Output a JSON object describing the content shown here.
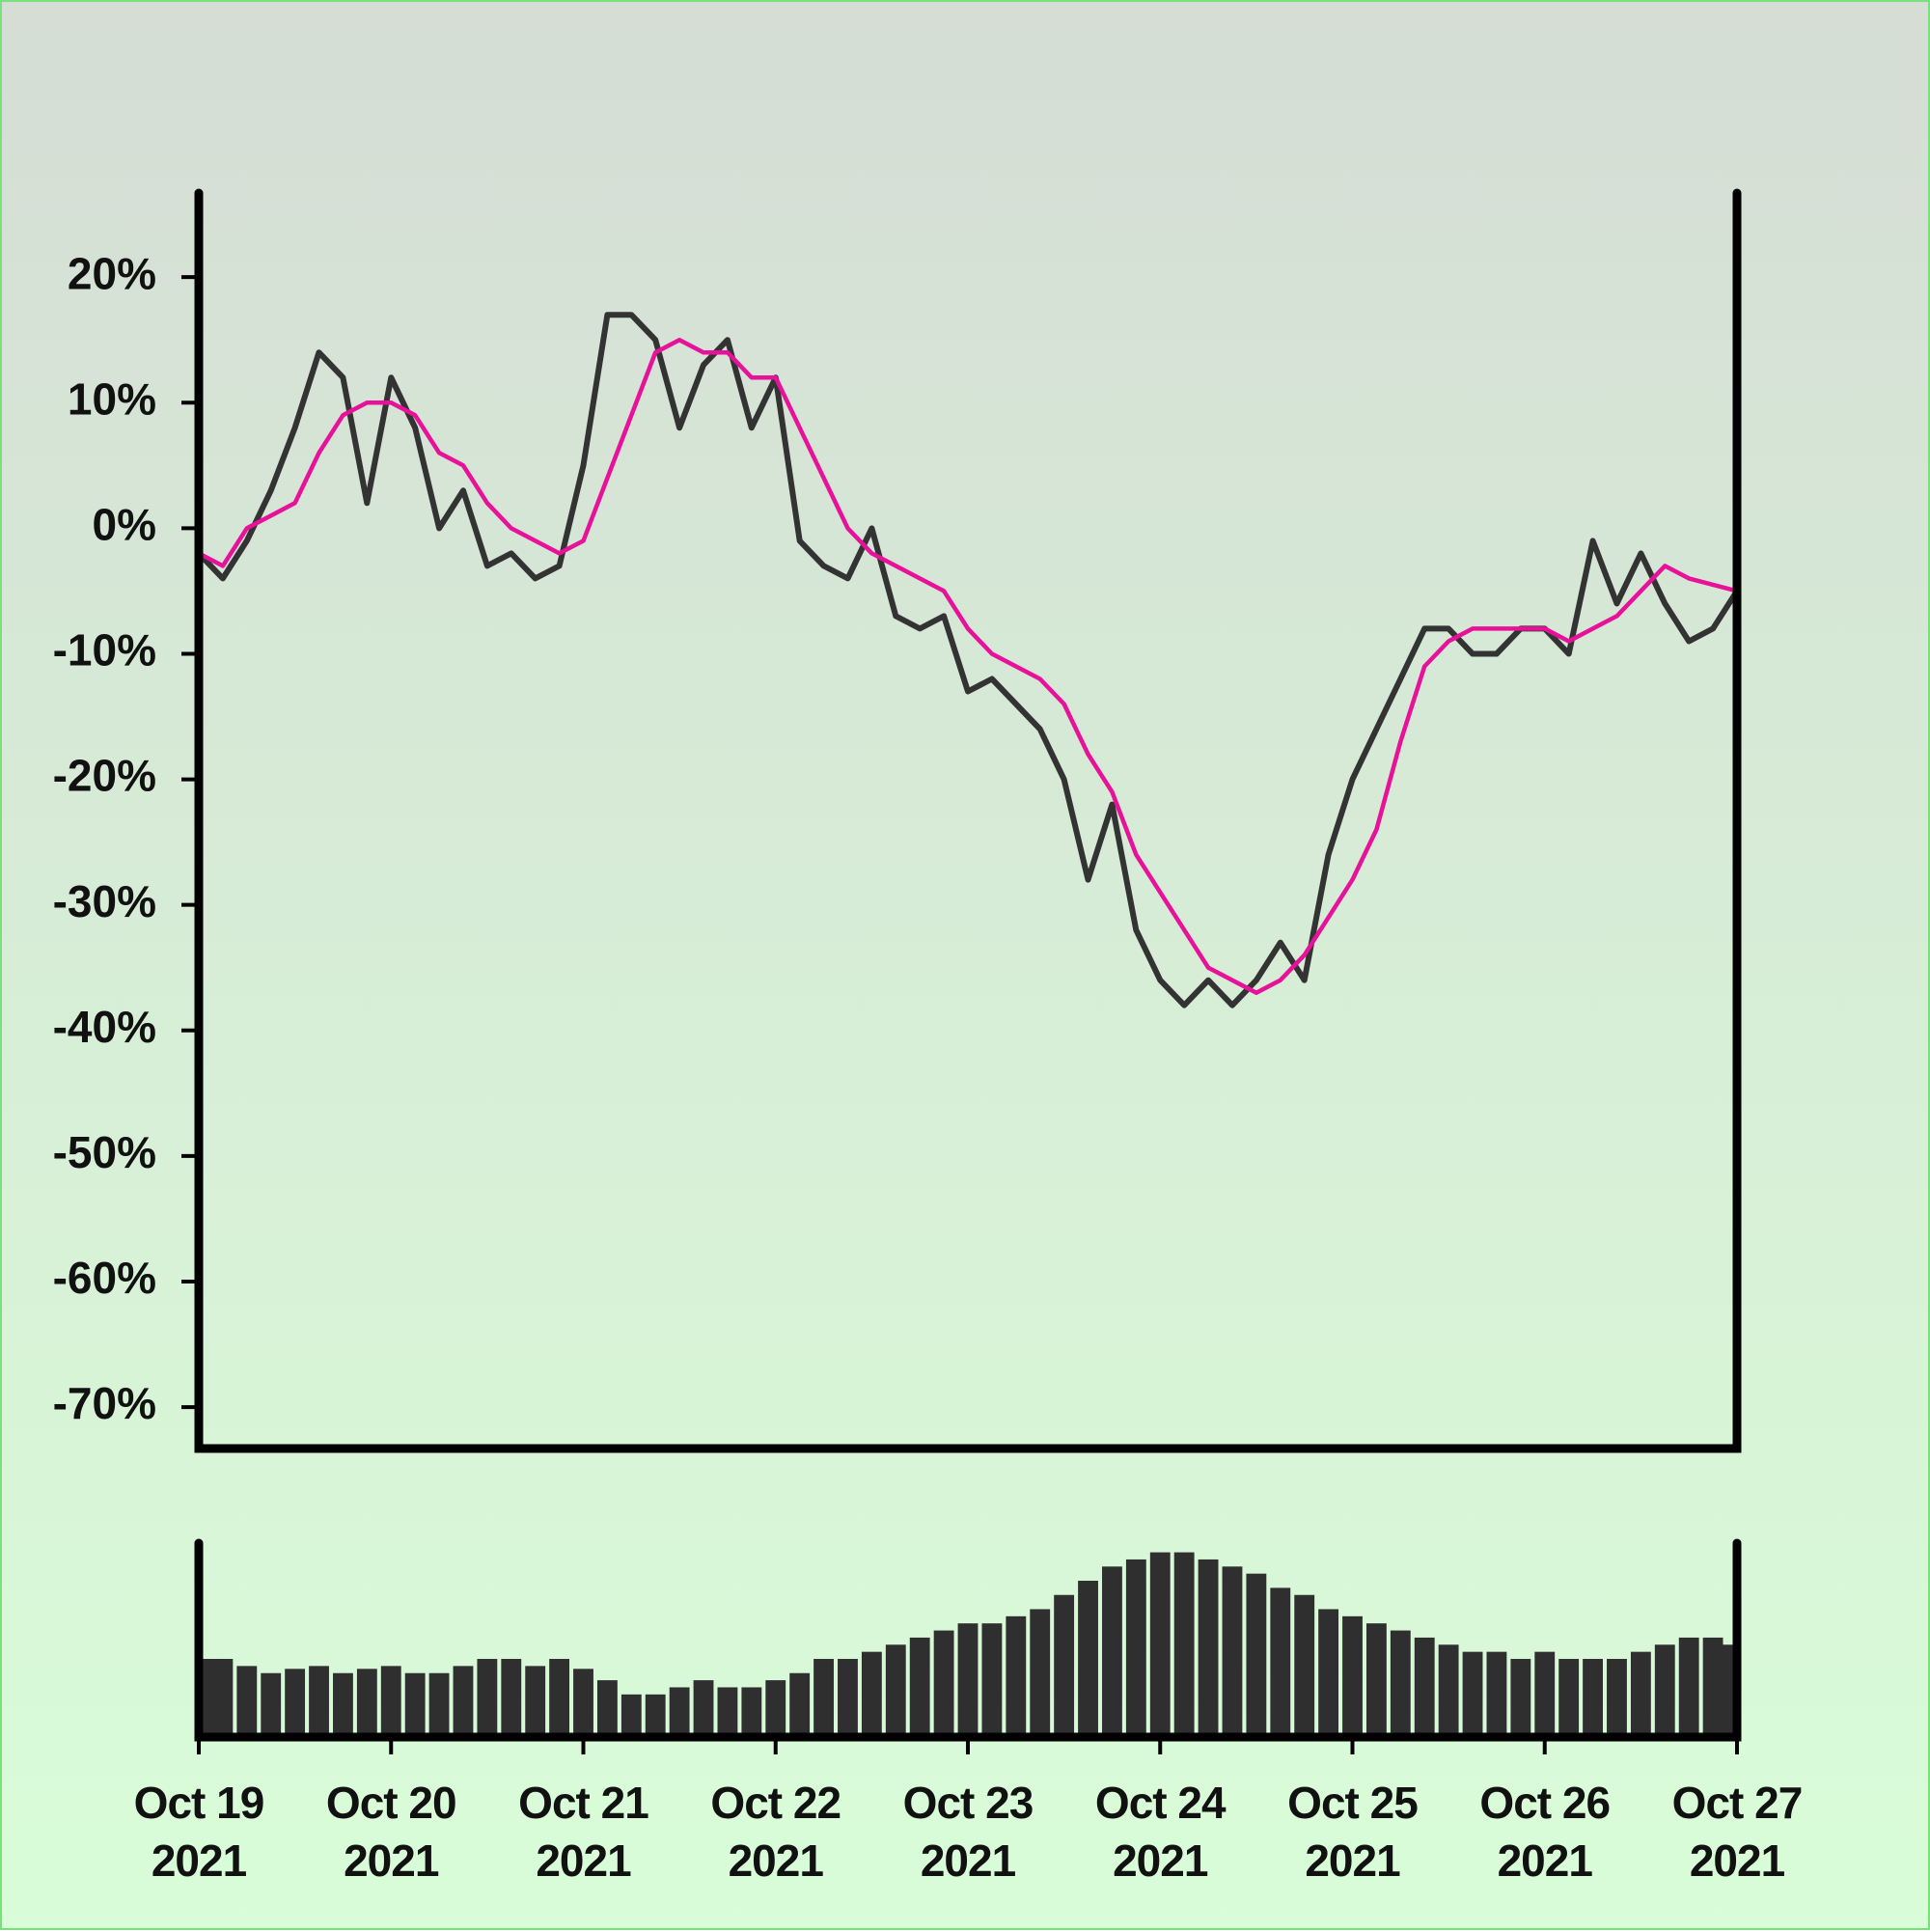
{
  "chart_data": [
    {
      "type": "line",
      "xlim": [
        "2021-10-19T00:00",
        "2021-10-27T00:00"
      ],
      "ylim": [
        -73.3,
        26.7
      ],
      "yticks": [
        {
          "value": -70,
          "label": "-70%"
        },
        {
          "value": -60,
          "label": "-60%"
        },
        {
          "value": -50,
          "label": "-50%"
        },
        {
          "value": -40,
          "label": "-40%"
        },
        {
          "value": -30,
          "label": "-30%"
        },
        {
          "value": -20,
          "label": "-20%"
        },
        {
          "value": -10,
          "label": "-10%"
        },
        {
          "value": 0,
          "label": "0%"
        },
        {
          "value": 10,
          "label": "10%"
        },
        {
          "value": 20,
          "label": "20%"
        }
      ],
      "x": [
        "2021-10-19T00:00",
        "2021-10-19T03:00",
        "2021-10-19T06:00",
        "2021-10-19T09:00",
        "2021-10-19T12:00",
        "2021-10-19T15:00",
        "2021-10-19T18:00",
        "2021-10-19T21:00",
        "2021-10-20T00:00",
        "2021-10-20T03:00",
        "2021-10-20T06:00",
        "2021-10-20T09:00",
        "2021-10-20T12:00",
        "2021-10-20T15:00",
        "2021-10-20T18:00",
        "2021-10-20T21:00",
        "2021-10-21T00:00",
        "2021-10-21T03:00",
        "2021-10-21T06:00",
        "2021-10-21T09:00",
        "2021-10-21T12:00",
        "2021-10-21T15:00",
        "2021-10-21T18:00",
        "2021-10-21T21:00",
        "2021-10-22T00:00",
        "2021-10-22T03:00",
        "2021-10-22T06:00",
        "2021-10-22T09:00",
        "2021-10-22T12:00",
        "2021-10-22T15:00",
        "2021-10-22T18:00",
        "2021-10-22T21:00",
        "2021-10-23T00:00",
        "2021-10-23T03:00",
        "2021-10-23T06:00",
        "2021-10-23T09:00",
        "2021-10-23T12:00",
        "2021-10-23T15:00",
        "2021-10-23T18:00",
        "2021-10-23T21:00",
        "2021-10-24T00:00",
        "2021-10-24T03:00",
        "2021-10-24T06:00",
        "2021-10-24T09:00",
        "2021-10-24T12:00",
        "2021-10-24T15:00",
        "2021-10-24T18:00",
        "2021-10-24T21:00",
        "2021-10-25T00:00",
        "2021-10-25T03:00",
        "2021-10-25T06:00",
        "2021-10-25T09:00",
        "2021-10-25T12:00",
        "2021-10-25T15:00",
        "2021-10-25T18:00",
        "2021-10-25T21:00",
        "2021-10-26T00:00",
        "2021-10-26T03:00",
        "2021-10-26T06:00",
        "2021-10-26T09:00",
        "2021-10-26T12:00",
        "2021-10-26T15:00",
        "2021-10-26T18:00",
        "2021-10-26T21:00",
        "2021-10-27T00:00"
      ],
      "series": [
        {
          "color": "#333333",
          "values": [
            -2,
            -4,
            -1,
            3,
            8,
            14,
            12,
            2,
            12,
            8,
            0,
            3,
            -3,
            -2,
            -4,
            -3,
            5,
            17,
            17,
            15,
            8,
            13,
            15,
            8,
            12,
            -1,
            -3,
            -4,
            0,
            -7,
            -8,
            -7,
            -13,
            -12,
            -14,
            -16,
            -20,
            -28,
            -22,
            -32,
            -36,
            -38,
            -36,
            -38,
            -36,
            -33,
            -36,
            -26,
            -20,
            -16,
            -12,
            -8,
            -8,
            -10,
            -10,
            -8,
            -8,
            -10,
            -1,
            -6,
            -2,
            -6,
            -9,
            -8,
            -5
          ]
        },
        {
          "color": "#e8129a",
          "values": [
            -2,
            -3,
            0,
            1,
            2,
            6,
            9,
            10,
            10,
            9,
            6,
            5,
            2,
            0,
            -1,
            -2,
            -1,
            4,
            9,
            14,
            15,
            14,
            14,
            12,
            12,
            8,
            4,
            0,
            -2,
            -3,
            -4,
            -5,
            -8,
            -10,
            -11,
            -12,
            -14,
            -18,
            -21,
            -26,
            -29,
            -32,
            -35,
            -36,
            -37,
            -36,
            -34,
            -31,
            -28,
            -24,
            -17,
            -11,
            -9,
            -8,
            -8,
            -8,
            -8,
            -9,
            -8,
            -7,
            -5,
            -3,
            -4,
            -4.5,
            -5
          ]
        }
      ]
    },
    {
      "type": "bar",
      "color": "#2f2f2f",
      "xlim": [
        "2021-10-19T00:00",
        "2021-10-27T00:00"
      ],
      "xticks": [
        {
          "value": "2021-10-19T00:00",
          "label": "Oct 19\n2021"
        },
        {
          "value": "2021-10-20T00:00",
          "label": "Oct 20\n2021"
        },
        {
          "value": "2021-10-21T00:00",
          "label": "Oct 21\n2021"
        },
        {
          "value": "2021-10-22T00:00",
          "label": "Oct 22\n2021"
        },
        {
          "value": "2021-10-23T00:00",
          "label": "Oct 23\n2021"
        },
        {
          "value": "2021-10-24T00:00",
          "label": "Oct 24\n2021"
        },
        {
          "value": "2021-10-25T00:00",
          "label": "Oct 25\n2021"
        },
        {
          "value": "2021-10-26T00:00",
          "label": "Oct 26\n2021"
        },
        {
          "value": "2021-10-27T00:00",
          "label": "Oct 27\n2021"
        }
      ],
      "x": [
        "2021-10-19T00:00",
        "2021-10-19T03:00",
        "2021-10-19T06:00",
        "2021-10-19T09:00",
        "2021-10-19T12:00",
        "2021-10-19T15:00",
        "2021-10-19T18:00",
        "2021-10-19T21:00",
        "2021-10-20T00:00",
        "2021-10-20T03:00",
        "2021-10-20T06:00",
        "2021-10-20T09:00",
        "2021-10-20T12:00",
        "2021-10-20T15:00",
        "2021-10-20T18:00",
        "2021-10-20T21:00",
        "2021-10-21T00:00",
        "2021-10-21T03:00",
        "2021-10-21T06:00",
        "2021-10-21T09:00",
        "2021-10-21T12:00",
        "2021-10-21T15:00",
        "2021-10-21T18:00",
        "2021-10-21T21:00",
        "2021-10-22T00:00",
        "2021-10-22T03:00",
        "2021-10-22T06:00",
        "2021-10-22T09:00",
        "2021-10-22T12:00",
        "2021-10-22T15:00",
        "2021-10-22T18:00",
        "2021-10-22T21:00",
        "2021-10-23T00:00",
        "2021-10-23T03:00",
        "2021-10-23T06:00",
        "2021-10-23T09:00",
        "2021-10-23T12:00",
        "2021-10-23T15:00",
        "2021-10-23T18:00",
        "2021-10-23T21:00",
        "2021-10-24T00:00",
        "2021-10-24T03:00",
        "2021-10-24T06:00",
        "2021-10-24T09:00",
        "2021-10-24T12:00",
        "2021-10-24T15:00",
        "2021-10-24T18:00",
        "2021-10-24T21:00",
        "2021-10-25T00:00",
        "2021-10-25T03:00",
        "2021-10-25T06:00",
        "2021-10-25T09:00",
        "2021-10-25T12:00",
        "2021-10-25T15:00",
        "2021-10-25T18:00",
        "2021-10-25T21:00",
        "2021-10-26T00:00",
        "2021-10-26T03:00",
        "2021-10-26T06:00",
        "2021-10-26T09:00",
        "2021-10-26T12:00",
        "2021-10-26T15:00",
        "2021-10-26T18:00",
        "2021-10-26T21:00",
        "2021-10-27T00:00"
      ],
      "values": [
        55,
        55,
        50,
        45,
        48,
        50,
        45,
        48,
        50,
        45,
        45,
        50,
        55,
        55,
        50,
        55,
        48,
        40,
        30,
        30,
        35,
        40,
        35,
        35,
        40,
        45,
        55,
        55,
        60,
        65,
        70,
        75,
        80,
        80,
        85,
        90,
        100,
        110,
        120,
        125,
        130,
        130,
        125,
        120,
        115,
        105,
        100,
        90,
        85,
        80,
        75,
        70,
        65,
        60,
        60,
        55,
        60,
        55,
        55,
        55,
        60,
        65,
        70,
        70,
        65
      ]
    }
  ]
}
